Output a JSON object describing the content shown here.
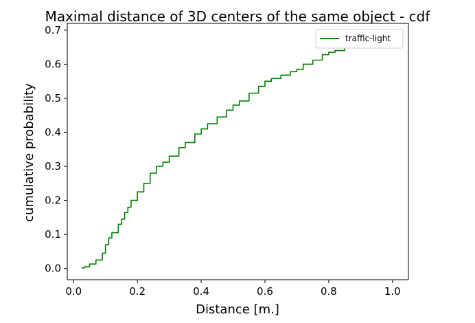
{
  "chart_data": {
    "type": "line",
    "title": "Maximal distance of 3D centers of the same object - cdf",
    "xlabel": "Distance [m.]",
    "ylabel": "cumulative probability",
    "xlim": [
      -0.02,
      1.05
    ],
    "ylim": [
      -0.033,
      0.72
    ],
    "xticks": [
      0.0,
      0.2,
      0.4,
      0.6,
      0.8,
      1.0
    ],
    "xtick_labels": [
      "0.0",
      "0.2",
      "0.4",
      "0.6",
      "0.8",
      "1.0"
    ],
    "yticks": [
      0.0,
      0.1,
      0.2,
      0.3,
      0.4,
      0.5,
      0.6,
      0.7
    ],
    "ytick_labels": [
      "0.0",
      "0.1",
      "0.2",
      "0.3",
      "0.4",
      "0.5",
      "0.6",
      "0.7"
    ],
    "grid": false,
    "legend_position": "top-right",
    "series": [
      {
        "name": "traffic-light",
        "color": "#008000",
        "x": [
          0.025,
          0.035,
          0.05,
          0.07,
          0.09,
          0.1,
          0.11,
          0.12,
          0.14,
          0.15,
          0.16,
          0.17,
          0.18,
          0.2,
          0.22,
          0.24,
          0.26,
          0.28,
          0.3,
          0.33,
          0.35,
          0.38,
          0.4,
          0.42,
          0.45,
          0.48,
          0.5,
          0.52,
          0.55,
          0.58,
          0.6,
          0.62,
          0.65,
          0.68,
          0.7,
          0.72,
          0.75,
          0.78,
          0.8,
          0.82,
          0.85,
          0.88,
          0.9,
          0.93,
          0.95
        ],
        "y": [
          0.002,
          0.005,
          0.013,
          0.025,
          0.045,
          0.07,
          0.09,
          0.105,
          0.13,
          0.145,
          0.165,
          0.18,
          0.2,
          0.225,
          0.25,
          0.28,
          0.3,
          0.312,
          0.33,
          0.355,
          0.37,
          0.395,
          0.41,
          0.425,
          0.445,
          0.465,
          0.48,
          0.492,
          0.515,
          0.535,
          0.55,
          0.558,
          0.568,
          0.578,
          0.585,
          0.6,
          0.612,
          0.628,
          0.635,
          0.64,
          0.65,
          0.66,
          0.665,
          0.675,
          0.68
        ]
      }
    ]
  }
}
